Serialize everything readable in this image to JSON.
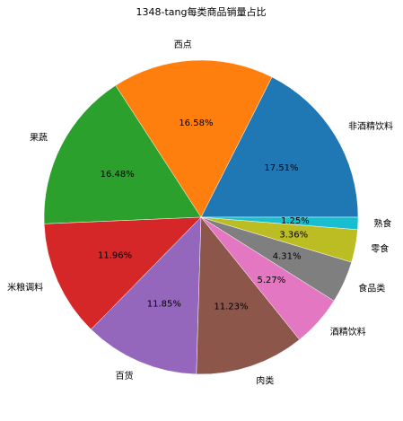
{
  "chart_data": {
    "type": "pie",
    "title": "1348-tang每类商品销量占比",
    "categories": [
      "非酒精饮料",
      "西点",
      "果蔬",
      "米粮调料",
      "百货",
      "肉类",
      "酒精饮料",
      "食品类",
      "零食",
      "熟食"
    ],
    "values": [
      17.51,
      16.58,
      16.48,
      11.96,
      11.85,
      11.23,
      5.27,
      4.31,
      3.36,
      1.25
    ],
    "value_labels": [
      "17.51%",
      "16.58%",
      "16.48%",
      "11.96%",
      "11.85%",
      "11.23%",
      "5.27%",
      "4.31%",
      "3.36%",
      "1.25%"
    ],
    "colors": [
      "#1f77b4",
      "#ff7f0e",
      "#2ca02c",
      "#d62728",
      "#9467bd",
      "#8c564b",
      "#e377c2",
      "#7f7f7f",
      "#bcbd22",
      "#17becf"
    ]
  }
}
